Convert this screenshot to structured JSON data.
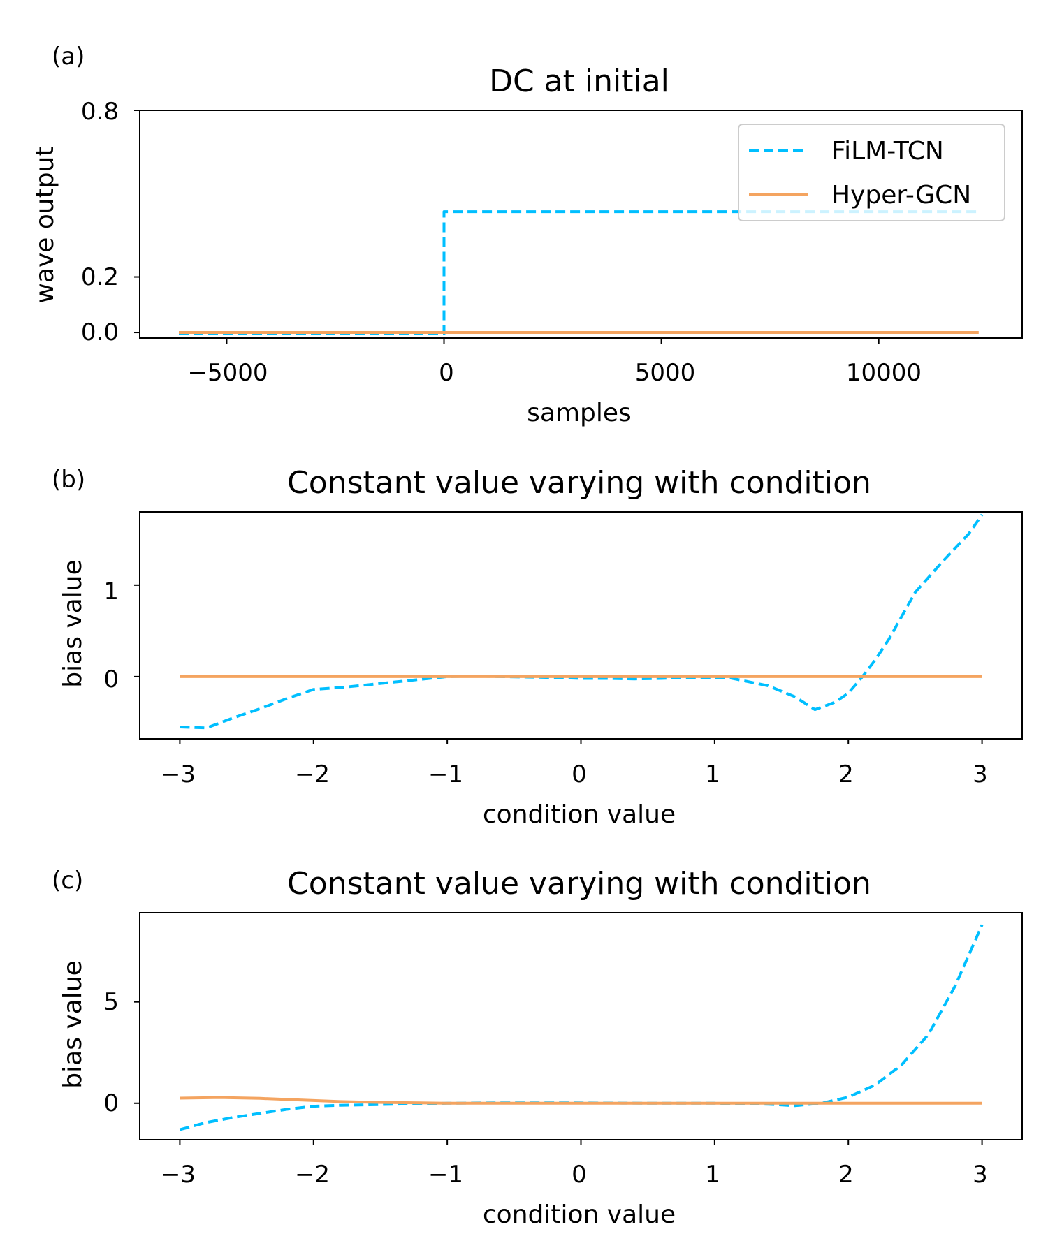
{
  "colors": {
    "film": "#00BFFF",
    "hyper": "#F4A460",
    "axis": "#000000",
    "legend_border": "#cccccc"
  },
  "legend": {
    "placement": "upper-right",
    "entries": [
      {
        "label": "FiLM-TCN",
        "style": "dashed",
        "color": "#00BFFF"
      },
      {
        "label": "Hyper-GCN",
        "style": "solid",
        "color": "#F4A460"
      }
    ]
  },
  "chart_data": [
    {
      "panel_label": "(a)",
      "type": "line",
      "title": "DC at initial",
      "xlabel": "samples",
      "ylabel": "wave output",
      "xlim": [
        -7000,
        13300
      ],
      "ylim": [
        -0.02,
        0.8
      ],
      "xticks": [
        -5000,
        0,
        5000,
        10000
      ],
      "xtick_labels": [
        "−5000",
        "0",
        "5000",
        "10000"
      ],
      "yticks": [
        0.0,
        0.2,
        0.8
      ],
      "ytick_labels": [
        "0.0",
        "0.2",
        "0.8"
      ],
      "grid": false,
      "series": [
        {
          "name": "FiLM-TCN",
          "style": "dashed",
          "color": "#00BFFF",
          "x": [
            -6100,
            -1,
            0,
            12300
          ],
          "y": [
            -0.005,
            -0.005,
            0.435,
            0.435
          ]
        },
        {
          "name": "Hyper-GCN",
          "style": "solid",
          "color": "#F4A460",
          "x": [
            -6100,
            12300
          ],
          "y": [
            0.0,
            0.0
          ]
        }
      ]
    },
    {
      "panel_label": "(b)",
      "type": "line",
      "title": "Constant value varying with condition",
      "xlabel": "condition value",
      "ylabel": "bias value",
      "xlim": [
        -3.3,
        3.3
      ],
      "ylim": [
        -0.68,
        1.8
      ],
      "xticks": [
        -3,
        -2,
        -1,
        0,
        1,
        2,
        3
      ],
      "xtick_labels": [
        "−3",
        "−2",
        "−1",
        "0",
        "1",
        "2",
        "3"
      ],
      "yticks": [
        0,
        1
      ],
      "ytick_labels": [
        "0",
        "1"
      ],
      "grid": false,
      "series": [
        {
          "name": "FiLM-TCN",
          "style": "dashed",
          "color": "#00BFFF",
          "x": [
            -3.0,
            -2.8,
            -2.6,
            -2.4,
            -2.2,
            -2.0,
            -1.8,
            -1.6,
            -1.4,
            -1.2,
            -1.0,
            -0.8,
            -0.6,
            -0.4,
            -0.2,
            0.0,
            0.2,
            0.4,
            0.6,
            0.8,
            1.0,
            1.1,
            1.2,
            1.4,
            1.6,
            1.75,
            1.9,
            2.0,
            2.1,
            2.2,
            2.3,
            2.5,
            2.7,
            2.9,
            3.0
          ],
          "y": [
            -0.55,
            -0.56,
            -0.45,
            -0.35,
            -0.24,
            -0.14,
            -0.12,
            -0.09,
            -0.06,
            -0.03,
            0.0,
            0.005,
            0.0,
            -0.005,
            -0.01,
            -0.02,
            -0.02,
            -0.025,
            -0.02,
            -0.01,
            -0.01,
            -0.01,
            -0.04,
            -0.1,
            -0.22,
            -0.36,
            -0.28,
            -0.18,
            -0.01,
            0.18,
            0.4,
            0.92,
            1.25,
            1.56,
            1.77
          ]
        },
        {
          "name": "Hyper-GCN",
          "style": "solid",
          "color": "#F4A460",
          "x": [
            -3.0,
            3.0
          ],
          "y": [
            0.0,
            0.0
          ]
        }
      ]
    },
    {
      "panel_label": "(c)",
      "type": "line",
      "title": "Constant value varying with condition",
      "xlabel": "condition value",
      "ylabel": "bias value",
      "xlim": [
        -3.3,
        3.3
      ],
      "ylim": [
        -1.8,
        9.4
      ],
      "xticks": [
        -3,
        -2,
        -1,
        0,
        1,
        2,
        3
      ],
      "xtick_labels": [
        "−3",
        "−2",
        "−1",
        "0",
        "1",
        "2",
        "3"
      ],
      "yticks": [
        0,
        5
      ],
      "ytick_labels": [
        "0",
        "5"
      ],
      "grid": false,
      "series": [
        {
          "name": "FiLM-TCN",
          "style": "dashed",
          "color": "#00BFFF",
          "x": [
            -3.0,
            -2.8,
            -2.6,
            -2.4,
            -2.2,
            -2.0,
            -1.8,
            -1.6,
            -1.4,
            -1.2,
            -1.0,
            -0.6,
            -0.2,
            0.2,
            0.6,
            1.0,
            1.4,
            1.6,
            1.8,
            2.0,
            2.2,
            2.4,
            2.6,
            2.8,
            3.0
          ],
          "y": [
            -1.3,
            -0.95,
            -0.7,
            -0.5,
            -0.3,
            -0.15,
            -0.1,
            -0.08,
            -0.05,
            -0.02,
            0.0,
            0.02,
            0.02,
            0.01,
            0.0,
            0.0,
            -0.05,
            -0.12,
            0.0,
            0.3,
            0.9,
            1.9,
            3.4,
            5.8,
            8.8
          ]
        },
        {
          "name": "Hyper-GCN",
          "style": "solid",
          "color": "#F4A460",
          "x": [
            -3.0,
            -2.7,
            -2.4,
            -2.1,
            -1.8,
            -1.5,
            -1.2,
            -1.0,
            0.0,
            1.0,
            2.0,
            3.0
          ],
          "y": [
            0.25,
            0.28,
            0.24,
            0.16,
            0.08,
            0.04,
            0.02,
            0.0,
            0.0,
            0.0,
            0.0,
            0.0
          ]
        }
      ]
    }
  ]
}
